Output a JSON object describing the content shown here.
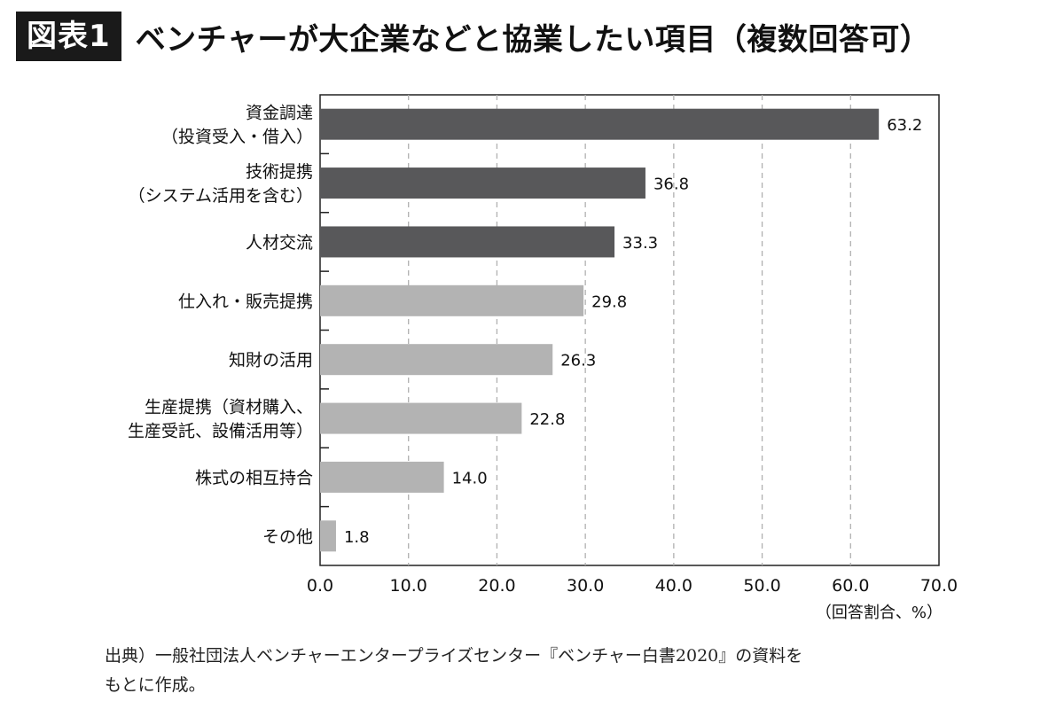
{
  "header": {
    "tag": "図表1",
    "title": "ベンチャーが大企業などと協業したい項目（複数回答可）"
  },
  "chart_data": {
    "type": "bar",
    "orientation": "horizontal",
    "categories": [
      [
        "資金調達",
        "（投資受入・借入）"
      ],
      [
        "技術提携",
        "（システム活用を含む）"
      ],
      [
        "人材交流"
      ],
      [
        "仕入れ・販売提携"
      ],
      [
        "知財の活用"
      ],
      [
        "生産提携（資材購入、",
        "生産受託、設備活用等）"
      ],
      [
        "株式の相互持合"
      ],
      [
        "その他"
      ]
    ],
    "values": [
      63.2,
      36.8,
      33.3,
      29.8,
      26.3,
      22.8,
      14.0,
      1.8
    ],
    "value_labels": [
      "63.2",
      "36.8",
      "33.3",
      "29.8",
      "26.3",
      "22.8",
      "14.0",
      "1.8"
    ],
    "highlighted_count": 3,
    "colors": {
      "highlight": "#58585a",
      "normal": "#b3b3b3",
      "axis": "#222222",
      "grid": "#b0b0b0"
    },
    "xlim": [
      0,
      70
    ],
    "xticks": [
      0,
      10,
      20,
      30,
      40,
      50,
      60,
      70
    ],
    "xtick_labels": [
      "0.0",
      "10.0",
      "20.0",
      "30.0",
      "40.0",
      "50.0",
      "60.0",
      "70.0"
    ],
    "xlabel": "（回答割合、%）",
    "grid": "vertical-dashed"
  },
  "source": {
    "line1": "出典）一般社団法人ベンチャーエンタープライズセンター『ベンチャー白書2020』の資料を",
    "line2": "もとに作成。"
  }
}
